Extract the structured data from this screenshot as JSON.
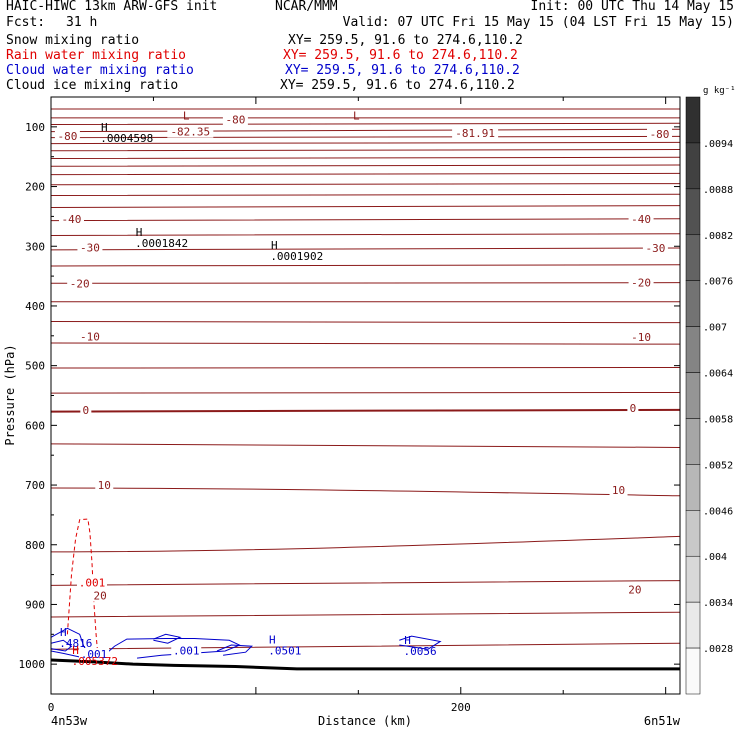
{
  "header": {
    "model": "HAIC-HIWC 13km ARW-GFS init",
    "org": "NCAR/MMM",
    "init": "Init: 00 UTC Thu 14 May 15",
    "fcst_label": "Fcst:",
    "fcst_value": "31 h",
    "valid": "Valid: 07 UTC Fri 15 May 15 (04 LST Fri 15 May 15)"
  },
  "fields": [
    {
      "name": "Snow mixing ratio",
      "xy": "XY= 259.5, 91.6 to 274.6,110.2",
      "color": "#000000"
    },
    {
      "name": "Rain water mixing ratio",
      "xy": "XY= 259.5, 91.6 to 274.6,110.2",
      "color": "#e00000"
    },
    {
      "name": "Cloud water mixing ratio",
      "xy": "XY= 259.5, 91.6 to 274.6,110.2",
      "color": "#0000cc"
    },
    {
      "name": "Cloud ice mixing ratio",
      "xy": "XY= 259.5, 91.6 to 274.6,110.2",
      "color": "#000000"
    }
  ],
  "chart_data": {
    "type": "contour",
    "ylabel": "Pressure (hPa)",
    "xlabel": "Distance (km)",
    "xlim": [
      0,
      307
    ],
    "ylim": [
      1050,
      50
    ],
    "y_ticks": [
      100,
      200,
      300,
      400,
      500,
      600,
      700,
      800,
      900,
      1000
    ],
    "x_ticks": [
      0,
      200
    ],
    "x_end_labels": [
      "4n53w",
      "6n51w"
    ],
    "colorbar": {
      "units": "g kg⁻¹",
      "labels": [
        ".0094",
        ".0088",
        ".0082",
        ".0076",
        ".007",
        ".0064",
        ".0058",
        ".0052",
        ".0046",
        ".004",
        ".0034",
        ".0028"
      ]
    },
    "temperature_contours": [
      {
        "left_p": 70,
        "right_p": 70
      },
      {
        "left_p": 85,
        "right_p": 85
      },
      {
        "left_p": 96,
        "right_p": 94
      },
      {
        "left_p": 108,
        "right_p": 104
      },
      {
        "left_p": 118,
        "right_p": 116
      },
      {
        "left_p": 128,
        "right_p": 126
      },
      {
        "left_p": 140,
        "right_p": 138
      },
      {
        "left_p": 153,
        "right_p": 151
      },
      {
        "left_p": 166,
        "right_p": 164
      },
      {
        "left_p": 180,
        "right_p": 178
      },
      {
        "left_p": 197,
        "right_p": 195
      },
      {
        "left_p": 215,
        "right_p": 213
      },
      {
        "left_p": 235,
        "right_p": 232
      },
      {
        "left_p": 257,
        "right_p": 254
      },
      {
        "left_p": 282,
        "right_p": 279
      },
      {
        "left_p": 306,
        "right_p": 303
      },
      {
        "left_p": 333,
        "right_p": 331
      },
      {
        "left_p": 362,
        "right_p": 361
      },
      {
        "left_p": 393,
        "right_p": 393
      },
      {
        "left_p": 426,
        "right_p": 428
      },
      {
        "left_p": 462,
        "right_p": 464
      },
      {
        "left_p": 504,
        "right_p": 503
      },
      {
        "left_p": 546,
        "right_p": 545
      },
      {
        "left_p": 577,
        "right_p": 574
      },
      {
        "left_p": 631,
        "right_p": 637
      },
      {
        "left_p": 705,
        "right_p": 718
      },
      {
        "left_p": 812,
        "right_p": 786
      },
      {
        "left_p": 868,
        "right_p": 860
      },
      {
        "left_p": 921,
        "right_p": 913
      },
      {
        "left_p": 975,
        "right_p": 965
      }
    ],
    "temperature_labels": [
      {
        "text": "-80",
        "x": 8,
        "p": 115
      },
      {
        "text": "-82.35",
        "x": 68,
        "p": 108
      },
      {
        "text": "-80",
        "x": 90,
        "p": 88
      },
      {
        "text": "-81.91",
        "x": 207,
        "p": 110
      },
      {
        "text": "-80",
        "x": 297,
        "p": 112
      },
      {
        "text": "-40",
        "x": 10,
        "p": 254
      },
      {
        "text": "-40",
        "x": 288,
        "p": 254
      },
      {
        "text": "-30",
        "x": 19,
        "p": 302
      },
      {
        "text": "-30",
        "x": 295,
        "p": 303
      },
      {
        "text": "-20",
        "x": 14,
        "p": 362
      },
      {
        "text": "-20",
        "x": 288,
        "p": 361
      },
      {
        "text": "-10",
        "x": 19,
        "p": 451
      },
      {
        "text": "-10",
        "x": 288,
        "p": 452
      },
      {
        "text": "0",
        "x": 17,
        "p": 574
      },
      {
        "text": "0",
        "x": 284,
        "p": 571
      },
      {
        "text": "10",
        "x": 26,
        "p": 700
      },
      {
        "text": "10",
        "x": 277,
        "p": 708
      },
      {
        "text": "20",
        "x": 24,
        "p": 885
      },
      {
        "text": "20",
        "x": 285,
        "p": 875
      }
    ],
    "extrema": [
      {
        "mark": "L",
        "x": 66,
        "p": 88,
        "value": "",
        "color": "#8b1a1a"
      },
      {
        "mark": "L",
        "x": 149,
        "p": 88,
        "value": "",
        "color": "#8b1a1a"
      },
      {
        "mark": "H",
        "x": 26,
        "p": 107,
        "value": ".0004598",
        "color": "#000000"
      },
      {
        "mark": "H",
        "x": 43,
        "p": 283,
        "value": ".0001842",
        "color": "#000000"
      },
      {
        "mark": "H",
        "x": 109,
        "p": 305,
        "value": ".0001902",
        "color": "#000000"
      },
      {
        "mark": "H",
        "x": 6,
        "p": 953,
        "value": ".4816",
        "color": "#0000cc"
      },
      {
        "mark": "H",
        "x": 12,
        "p": 983,
        "value": ".005372",
        "color": "#e00000"
      },
      {
        "mark": "H",
        "x": 108,
        "p": 965,
        "value": ".0501",
        "color": "#0000cc"
      },
      {
        "mark": "H",
        "x": 174,
        "p": 966,
        "value": ".0056",
        "color": "#0000cc"
      }
    ],
    "contour_labels": [
      {
        "text": ".001",
        "x": 20,
        "p": 863,
        "color": "#e00000"
      },
      {
        "text": ".001",
        "x": 21,
        "p": 983,
        "color": "#0000cc"
      },
      {
        "text": ".001",
        "x": 66,
        "p": 977,
        "color": "#0000cc"
      }
    ],
    "rain_contour": [
      {
        "x": 8,
        "p": 950
      },
      {
        "x": 9,
        "p": 900
      },
      {
        "x": 10,
        "p": 850
      },
      {
        "x": 12,
        "p": 790
      },
      {
        "x": 14,
        "p": 758
      },
      {
        "x": 18,
        "p": 757
      },
      {
        "x": 19,
        "p": 780
      },
      {
        "x": 20,
        "p": 830
      },
      {
        "x": 21,
        "p": 900
      },
      {
        "x": 22,
        "p": 950
      },
      {
        "x": 23,
        "p": 990
      }
    ],
    "cloud_water_contours": [
      [
        {
          "x": 0,
          "p": 955
        },
        {
          "x": 8,
          "p": 940
        },
        {
          "x": 14,
          "p": 950
        },
        {
          "x": 16,
          "p": 970
        },
        {
          "x": 19,
          "p": 985
        },
        {
          "x": 14,
          "p": 988
        },
        {
          "x": 6,
          "p": 982
        },
        {
          "x": 0,
          "p": 978
        }
      ],
      [
        {
          "x": 0,
          "p": 965
        },
        {
          "x": 6,
          "p": 960
        },
        {
          "x": 10,
          "p": 970
        },
        {
          "x": 7,
          "p": 978
        },
        {
          "x": 0,
          "p": 974
        }
      ],
      [
        {
          "x": 26,
          "p": 985
        },
        {
          "x": 31,
          "p": 970
        },
        {
          "x": 37,
          "p": 958
        },
        {
          "x": 56,
          "p": 957
        },
        {
          "x": 70,
          "p": 957
        },
        {
          "x": 87,
          "p": 960
        },
        {
          "x": 92,
          "p": 968
        },
        {
          "x": 85,
          "p": 978
        },
        {
          "x": 68,
          "p": 982
        },
        {
          "x": 54,
          "p": 985
        },
        {
          "x": 42,
          "p": 990
        }
      ],
      [
        {
          "x": 50,
          "p": 958
        },
        {
          "x": 56,
          "p": 950
        },
        {
          "x": 63,
          "p": 955
        },
        {
          "x": 57,
          "p": 965
        },
        {
          "x": 50,
          "p": 960
        }
      ],
      [
        {
          "x": 81,
          "p": 978
        },
        {
          "x": 88,
          "p": 968
        },
        {
          "x": 98,
          "p": 970
        },
        {
          "x": 95,
          "p": 980
        },
        {
          "x": 84,
          "p": 985
        }
      ],
      [
        {
          "x": 170,
          "p": 960
        },
        {
          "x": 176,
          "p": 953
        },
        {
          "x": 190,
          "p": 962
        },
        {
          "x": 184,
          "p": 975
        },
        {
          "x": 170,
          "p": 968
        }
      ]
    ],
    "terrain": [
      {
        "x": 0,
        "p": 993
      },
      {
        "x": 20,
        "p": 996
      },
      {
        "x": 40,
        "p": 1000
      },
      {
        "x": 60,
        "p": 1002
      },
      {
        "x": 90,
        "p": 1004
      },
      {
        "x": 120,
        "p": 1008
      },
      {
        "x": 307,
        "p": 1008
      }
    ]
  }
}
